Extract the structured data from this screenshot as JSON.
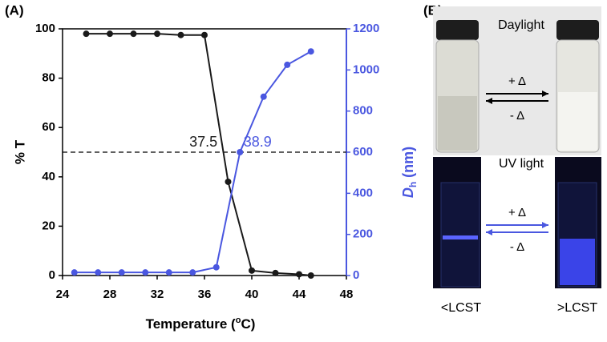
{
  "chart_data": {
    "type": "line",
    "panel_label": "(A)",
    "x_label": {
      "main": "Temperature (",
      "sup": "o",
      "end": "C)"
    },
    "y_label": "% T",
    "y2_label": {
      "main": "D",
      "sub": "h",
      "unit": " (nm)"
    },
    "xlim": [
      24,
      48
    ],
    "xticks": [
      24,
      28,
      32,
      36,
      40,
      44,
      48
    ],
    "ylim": [
      0,
      100
    ],
    "yticks": [
      0,
      20,
      40,
      60,
      80,
      100
    ],
    "y2lim": [
      0,
      1200
    ],
    "y2ticks": [
      0,
      200,
      400,
      600,
      800,
      1000,
      1200
    ],
    "series": [
      {
        "color": "#1a1a1a",
        "x": [
          26,
          28,
          30,
          32,
          34,
          36,
          38,
          40,
          42,
          44,
          45
        ],
        "values": [
          98,
          98,
          98,
          98,
          97.5,
          97.5,
          38,
          2,
          1,
          0.5,
          0
        ]
      },
      {
        "color": "#4a57e0",
        "axis": "y2",
        "x": [
          25,
          27,
          29,
          31,
          33,
          35,
          37,
          39,
          41,
          43,
          45
        ],
        "values": [
          15,
          15,
          15,
          15,
          15,
          15,
          40,
          600,
          870,
          1025,
          1090
        ]
      }
    ],
    "reference_line": {
      "y": 50
    },
    "annotations": [
      {
        "text": "37.5",
        "x": 37.5,
        "color": "#1a1a1a"
      },
      {
        "text": "38.9",
        "x": 38.9,
        "color": "#4a57e0"
      }
    ]
  },
  "panel_b": {
    "label": "(B)",
    "daylight": "Daylight",
    "uv": "UV light",
    "heat": "+ Δ",
    "cool": "- Δ",
    "below": "<LCST",
    "above": ">LCST"
  }
}
